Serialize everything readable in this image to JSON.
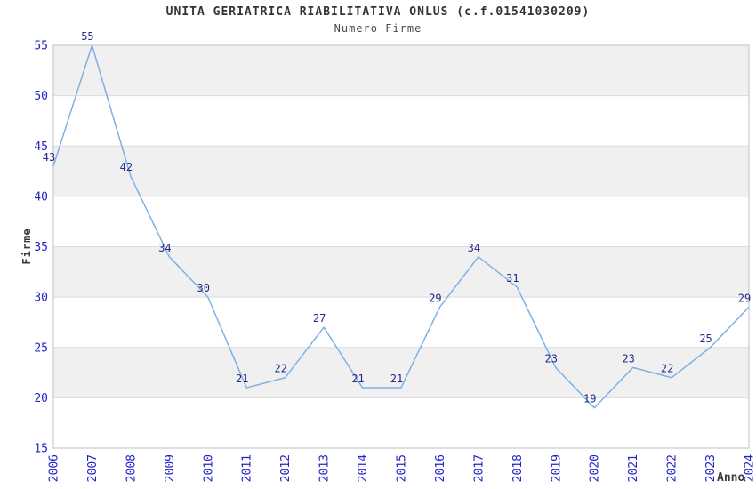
{
  "chart_data": {
    "type": "line",
    "title": "UNITA GERIATRICA RIABILITATIVA ONLUS (c.f.01541030209)",
    "subtitle": "Numero Firme",
    "xlabel": "Anno",
    "ylabel": "Firme",
    "x": [
      2006,
      2007,
      2008,
      2009,
      2010,
      2011,
      2012,
      2013,
      2014,
      2015,
      2016,
      2017,
      2018,
      2019,
      2020,
      2021,
      2022,
      2023,
      2024
    ],
    "values": [
      43,
      55,
      42,
      34,
      30,
      21,
      22,
      27,
      21,
      21,
      29,
      34,
      31,
      23,
      19,
      23,
      22,
      25,
      29
    ],
    "series": [
      {
        "name": "Numero Firme",
        "values": [
          43,
          55,
          42,
          34,
          30,
          21,
          22,
          27,
          21,
          21,
          29,
          34,
          31,
          23,
          19,
          23,
          22,
          25,
          29
        ]
      }
    ],
    "point_labels_visible": true,
    "ylim": [
      15,
      55
    ],
    "ytick_step": 5,
    "yticks": [
      15,
      20,
      25,
      30,
      35,
      40,
      45,
      50,
      55
    ],
    "grid": "horizontal-bands-alternating",
    "legend": "none",
    "colors": {
      "line": "#7cb1e6",
      "point_label": "#28288c",
      "tick_label": "#2323cc",
      "band_gray": "#f0f0f0",
      "band_white": "#ffffff",
      "gridline": "#dcdcdc",
      "border": "#c0c0c0",
      "title": "#333333",
      "axis_title": "#3a3a3a"
    }
  }
}
